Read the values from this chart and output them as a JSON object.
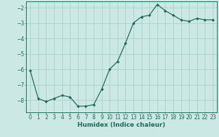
{
  "x": [
    0,
    1,
    2,
    3,
    4,
    5,
    6,
    7,
    8,
    9,
    10,
    11,
    12,
    13,
    14,
    15,
    16,
    17,
    18,
    19,
    20,
    21,
    22,
    23
  ],
  "y": [
    -6.1,
    -7.9,
    -8.1,
    -7.9,
    -7.7,
    -7.8,
    -8.4,
    -8.4,
    -8.3,
    -7.3,
    -6.0,
    -5.5,
    -4.3,
    -3.0,
    -2.6,
    -2.5,
    -1.8,
    -2.2,
    -2.5,
    -2.8,
    -2.9,
    -2.7,
    -2.8,
    -2.8
  ],
  "xlabel": "Humidex (Indice chaleur)",
  "ylabel": "",
  "bg_color": "#cce8e4",
  "line_color": "#1a6b5a",
  "marker_color": "#1a6b5a",
  "grid_color": "#aacfca",
  "tick_label_color": "#1a6b5a",
  "spine_color": "#1a6b5a",
  "xlim": [
    -0.5,
    23.5
  ],
  "ylim": [
    -8.8,
    -1.6
  ],
  "yticks": [
    -2,
    -3,
    -4,
    -5,
    -6,
    -7,
    -8
  ],
  "xticks": [
    0,
    1,
    2,
    3,
    4,
    5,
    6,
    7,
    8,
    9,
    10,
    11,
    12,
    13,
    14,
    15,
    16,
    17,
    18,
    19,
    20,
    21,
    22,
    23
  ],
  "xlabel_fontsize": 6.5,
  "tick_fontsize": 5.5,
  "line_width": 0.9,
  "marker_size": 2.0
}
